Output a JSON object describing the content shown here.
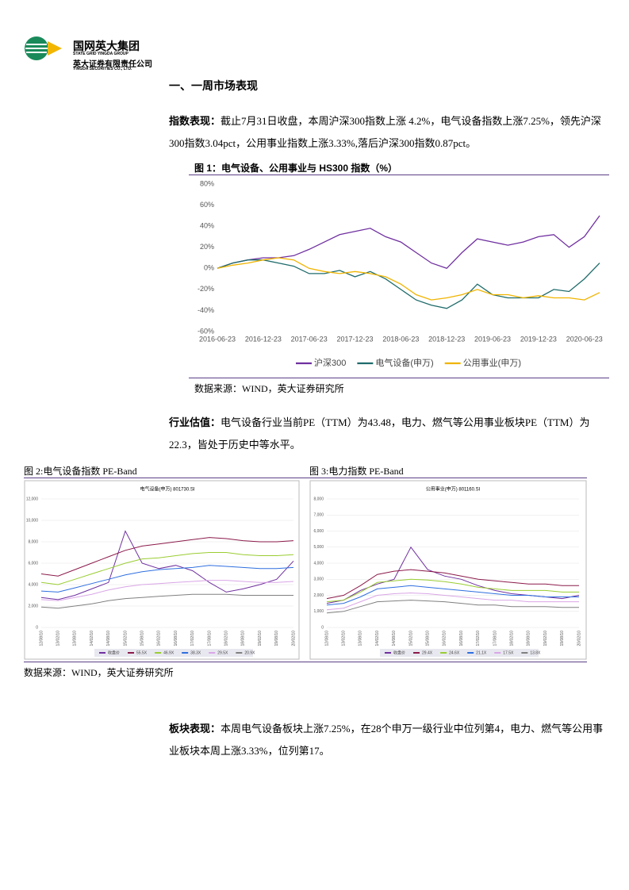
{
  "header": {
    "company_cn": "国网英大集团",
    "company_en": "STATE GRID YINGDA GROUP",
    "sub_cn": "英大证券有限责任公司",
    "sub_en": "YINGDA SECURITIES CO., LTD."
  },
  "section_title": "一、一周市场表现",
  "paragraphs": [
    {
      "label": "指数表现：",
      "text": "截止7月31日收盘，本周沪深300指数上涨 4.2%，电气设备指数上涨7.25%，领先沪深300指数3.04pct，公用事业指数上涨3.33%,落后沪深300指数0.87pct。"
    },
    {
      "label": "行业估值：",
      "text": "电气设备行业当前PE（TTM）为43.48，电力、燃气等公用事业板块PE（TTM）为22.3，皆处于历史中等水平。"
    },
    {
      "label": "板块表现：",
      "text": "本周电气设备板块上涨7.25%，在28个申万一级行业中位列第4，电力、燃气等公用事业板块本周上涨3.33%，位列第17。"
    }
  ],
  "sources": [
    "数据来源：WIND，英大证券研究所",
    "数据来源：WIND，英大证券研究所"
  ],
  "chart_data": [
    {
      "type": "line",
      "title": "图 1：电气设备、公用事业与 HS300 指数（%）",
      "categories": [
        "2016-06-23",
        null,
        null,
        "2016-12-23",
        null,
        null,
        "2017-06-23",
        null,
        null,
        "2017-12-23",
        null,
        null,
        "2018-06-23",
        null,
        null,
        "2018-12-23",
        null,
        null,
        "2019-06-23",
        null,
        null,
        "2019-12-23",
        null,
        null,
        "2020-06-23",
        null
      ],
      "ylim": [
        -60,
        80
      ],
      "yticks": [
        {
          "value": -60,
          "label": "-60%"
        },
        {
          "value": -40,
          "label": "-40%"
        },
        {
          "value": -20,
          "label": "-20%"
        },
        {
          "value": 0,
          "label": "0%"
        },
        {
          "value": 20,
          "label": "20%"
        },
        {
          "value": 40,
          "label": "40%"
        },
        {
          "value": 60,
          "label": "60%"
        },
        {
          "value": 80,
          "label": "80%"
        }
      ],
      "grid": false,
      "legend": "bottom",
      "series": [
        {
          "name": "沪深300",
          "color": "#7030a0",
          "values": [
            0,
            5,
            8,
            10,
            10,
            12,
            18,
            25,
            32,
            35,
            38,
            30,
            25,
            15,
            5,
            0,
            15,
            28,
            25,
            22,
            25,
            30,
            32,
            20,
            30,
            50
          ]
        },
        {
          "name": "电气设备(申万)",
          "color": "#1f6b6b",
          "values": [
            0,
            5,
            8,
            8,
            5,
            2,
            -5,
            -5,
            -2,
            -8,
            -3,
            -10,
            -20,
            -30,
            -35,
            -38,
            -30,
            -15,
            -25,
            -28,
            -28,
            -28,
            -20,
            -22,
            -10,
            5
          ]
        },
        {
          "name": "公用事业(申万)",
          "color": "#f0b400",
          "values": [
            0,
            3,
            5,
            8,
            10,
            8,
            0,
            -3,
            -5,
            -3,
            -5,
            -8,
            -15,
            -25,
            -30,
            -28,
            -25,
            -20,
            -25,
            -25,
            -28,
            -26,
            -28,
            -28,
            -30,
            -23
          ]
        }
      ]
    },
    {
      "type": "line",
      "title": "图 2:电气设备指数 PE-Band",
      "subtitle": "电气设备(申万) 801730.SI",
      "categories": [
        "12/08/10",
        "13/02/10",
        "13/08/10",
        "14/02/10",
        "14/08/10",
        "15/02/10",
        "15/08/10",
        "16/02/10",
        "16/08/10",
        "17/02/10",
        "17/08/10",
        "18/02/10",
        "18/08/10",
        "19/02/10",
        "19/08/10",
        "20/02/10"
      ],
      "ylim": [
        0,
        12000
      ],
      "yticks": [
        0,
        {
          "value": 2000,
          "label": "2,000"
        },
        {
          "value": 4000,
          "label": "4,000"
        },
        {
          "value": 6000,
          "label": "6,000"
        },
        {
          "value": 8000,
          "label": "8,000"
        },
        {
          "value": 10000,
          "label": "10,000"
        },
        {
          "value": 12000,
          "label": "12,000"
        }
      ],
      "grid": true,
      "legend": "bottom",
      "series": [
        {
          "name": "收盘价",
          "color": "#7030a0",
          "values": [
            2800,
            2600,
            3000,
            3600,
            4200,
            9000,
            6000,
            5500,
            5800,
            5300,
            4200,
            3300,
            3600,
            4000,
            4500,
            6200
          ]
        },
        {
          "name": "55.5X",
          "color": "#8b1a4a",
          "values": [
            5000,
            4800,
            5400,
            6000,
            6600,
            7200,
            7600,
            7800,
            8000,
            8200,
            8400,
            8300,
            8100,
            8000,
            8000,
            8100
          ]
        },
        {
          "name": "46.9X",
          "color": "#9acd32",
          "values": [
            4200,
            4000,
            4500,
            5000,
            5500,
            6000,
            6400,
            6500,
            6700,
            6900,
            7000,
            7000,
            6800,
            6700,
            6700,
            6800
          ]
        },
        {
          "name": "38.3X",
          "color": "#2f6fdf",
          "values": [
            3400,
            3300,
            3700,
            4100,
            4500,
            4900,
            5200,
            5400,
            5500,
            5600,
            5800,
            5700,
            5600,
            5500,
            5500,
            5600
          ]
        },
        {
          "name": "29.5X",
          "color": "#d9a6e6",
          "values": [
            2600,
            2500,
            2800,
            3100,
            3500,
            3800,
            4000,
            4100,
            4200,
            4300,
            4400,
            4400,
            4300,
            4200,
            4200,
            4300
          ]
        },
        {
          "name": "20.9X",
          "color": "#808080",
          "values": [
            1900,
            1800,
            2000,
            2200,
            2500,
            2700,
            2800,
            2900,
            3000,
            3100,
            3100,
            3100,
            3000,
            3000,
            3000,
            3000
          ]
        }
      ]
    },
    {
      "type": "line",
      "title": "图 3:电力指数 PE-Band",
      "subtitle": "公用事业(申万) 801160.SI",
      "categories": [
        "12/08/10",
        "13/02/10",
        "13/08/10",
        "14/02/10",
        "14/08/10",
        "15/02/10",
        "15/08/10",
        "16/02/10",
        "16/08/10",
        "17/02/10",
        "17/08/10",
        "18/02/10",
        "18/08/10",
        "19/02/10",
        "19/08/10",
        "20/02/10"
      ],
      "ylim": [
        0,
        8000
      ],
      "yticks": [
        0,
        {
          "value": 1000,
          "label": "1,000"
        },
        {
          "value": 2000,
          "label": "2,000"
        },
        {
          "value": 3000,
          "label": "3,000"
        },
        {
          "value": 4000,
          "label": "4,000"
        },
        {
          "value": 5000,
          "label": "5,000"
        },
        {
          "value": 6000,
          "label": "6,000"
        },
        {
          "value": 7000,
          "label": "7,000"
        },
        {
          "value": 8000,
          "label": "8,000"
        }
      ],
      "grid": true,
      "legend": "bottom",
      "series": [
        {
          "name": "收盘价",
          "color": "#7030a0",
          "values": [
            1500,
            1700,
            2300,
            2700,
            3000,
            5000,
            3600,
            3200,
            3000,
            2600,
            2300,
            2100,
            2000,
            1900,
            1800,
            2000
          ]
        },
        {
          "name": "29.4X",
          "color": "#8b1a4a",
          "values": [
            1800,
            2000,
            2600,
            3300,
            3500,
            3600,
            3500,
            3400,
            3200,
            3000,
            2900,
            2800,
            2700,
            2700,
            2600,
            2600
          ]
        },
        {
          "name": "24.6X",
          "color": "#9acd32",
          "values": [
            1600,
            1700,
            2200,
            2800,
            2900,
            3000,
            2950,
            2850,
            2700,
            2500,
            2400,
            2300,
            2300,
            2300,
            2200,
            2200
          ]
        },
        {
          "name": "21.1X",
          "color": "#2f6fdf",
          "values": [
            1400,
            1500,
            1900,
            2400,
            2500,
            2600,
            2500,
            2400,
            2300,
            2200,
            2100,
            2000,
            2000,
            1900,
            1900,
            1900
          ]
        },
        {
          "name": "17.5X",
          "color": "#d9a6e6",
          "values": [
            1100,
            1200,
            1600,
            2000,
            2100,
            2150,
            2100,
            2000,
            1900,
            1800,
            1700,
            1700,
            1600,
            1600,
            1600,
            1600
          ]
        },
        {
          "name": "13.8X",
          "color": "#808080",
          "values": [
            900,
            1000,
            1300,
            1600,
            1650,
            1700,
            1650,
            1600,
            1500,
            1400,
            1400,
            1300,
            1300,
            1300,
            1250,
            1250
          ]
        }
      ]
    }
  ]
}
